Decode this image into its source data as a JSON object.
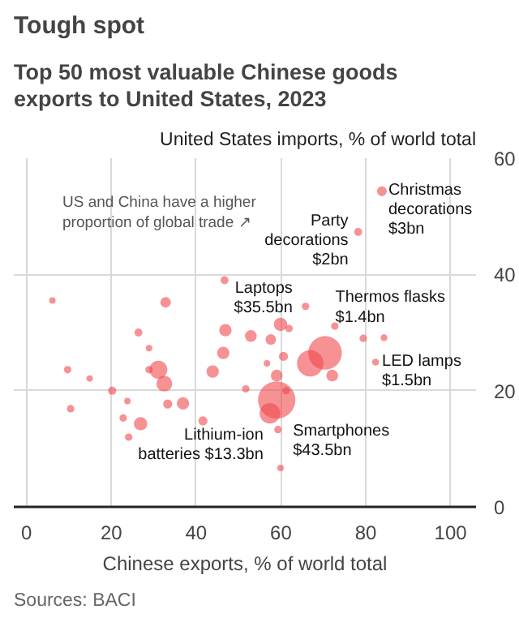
{
  "chart_data": {
    "type": "bubble",
    "title": "Tough spot",
    "subtitle": "Top 50 most valuable Chinese goods exports to United States, 2023",
    "xlabel": "Chinese exports, % of world total",
    "ylabel": "United States imports, % of world total",
    "x": [
      6.1,
      32.8,
      46.7,
      65.8,
      26.4,
      28.9,
      46.9,
      46.4,
      52.9,
      57.6,
      59.9,
      61.9,
      72.7,
      79.4,
      84.3,
      82.3,
      9.7,
      14.9,
      28.9,
      31.1,
      32.5,
      43.9,
      60.6,
      56.7,
      59.0,
      66.9,
      72.1,
      20.2,
      23.8,
      33.3,
      36.9,
      51.7,
      61.2,
      59.0,
      57.4,
      10.4,
      22.8,
      26.9,
      24.1,
      41.6,
      59.3,
      59.9,
      78.2,
      83.8,
      70.4
    ],
    "series": [
      {
        "color": "#f0474c",
        "values": [
          35.5,
          35.2,
          39.0,
          34.5,
          30.0,
          27.3,
          30.4,
          26.5,
          29.4,
          28.8,
          31.4,
          30.7,
          31.1,
          29.0,
          29.1,
          24.9,
          23.6,
          22.1,
          23.6,
          23.6,
          21.2,
          23.3,
          25.9,
          24.7,
          22.6,
          24.7,
          22.6,
          20.0,
          18.2,
          17.7,
          17.8,
          20.3,
          20.0,
          18.4,
          16.1,
          16.9,
          15.3,
          14.3,
          12.0,
          14.8,
          13.3,
          6.7,
          47.3,
          54.3,
          26.5
        ],
        "sizes": [
          0.03,
          0.08,
          0.045,
          0.04,
          0.045,
          0.03,
          0.11,
          0.11,
          0.1,
          0.08,
          0.13,
          0.04,
          0.04,
          0.04,
          0.032,
          0.034,
          0.04,
          0.03,
          0.04,
          0.23,
          0.18,
          0.11,
          0.06,
          0.03,
          0.1,
          0.5,
          0.1,
          0.05,
          0.03,
          0.06,
          0.11,
          0.04,
          0.04,
          1,
          0.306,
          0.04,
          0.04,
          0.13,
          0.04,
          0.06,
          0.04,
          0.03,
          0.046,
          0.069,
          0.816
        ]
      }
    ],
    "xlim": [
      -3,
      106
    ],
    "ylim": [
      0,
      60
    ],
    "xticks": [
      0,
      20,
      40,
      60,
      80,
      100
    ],
    "yticks": [
      0,
      20,
      40,
      60
    ],
    "grid": true,
    "annotations": [
      "US and China have a higher\nproportion of global trade ↗",
      {
        "text": "Christmas\ndecorations\n$3bn",
        "x": 83.8,
        "y": 54.3
      },
      {
        "text": "Party\ndecorations\n$2bn",
        "x": 78.2,
        "y": 47.3
      },
      {
        "text": "Laptops\n$35.5bn",
        "x": 70.4,
        "y": 26.5
      },
      {
        "text": "Thermos flasks\n$1.4bn",
        "x": 84.3,
        "y": 29.1
      },
      {
        "text": "LED lamps\n$1.5bn",
        "x": 82.3,
        "y": 24.9
      },
      {
        "text": "Smartphones\n$43.5bn",
        "x": 59.0,
        "y": 18.4
      },
      {
        "text": "Lithium-ion\nbatteries $13.3bn",
        "x": 57.4,
        "y": 16.1
      },
      "Sources: BACI"
    ]
  }
}
